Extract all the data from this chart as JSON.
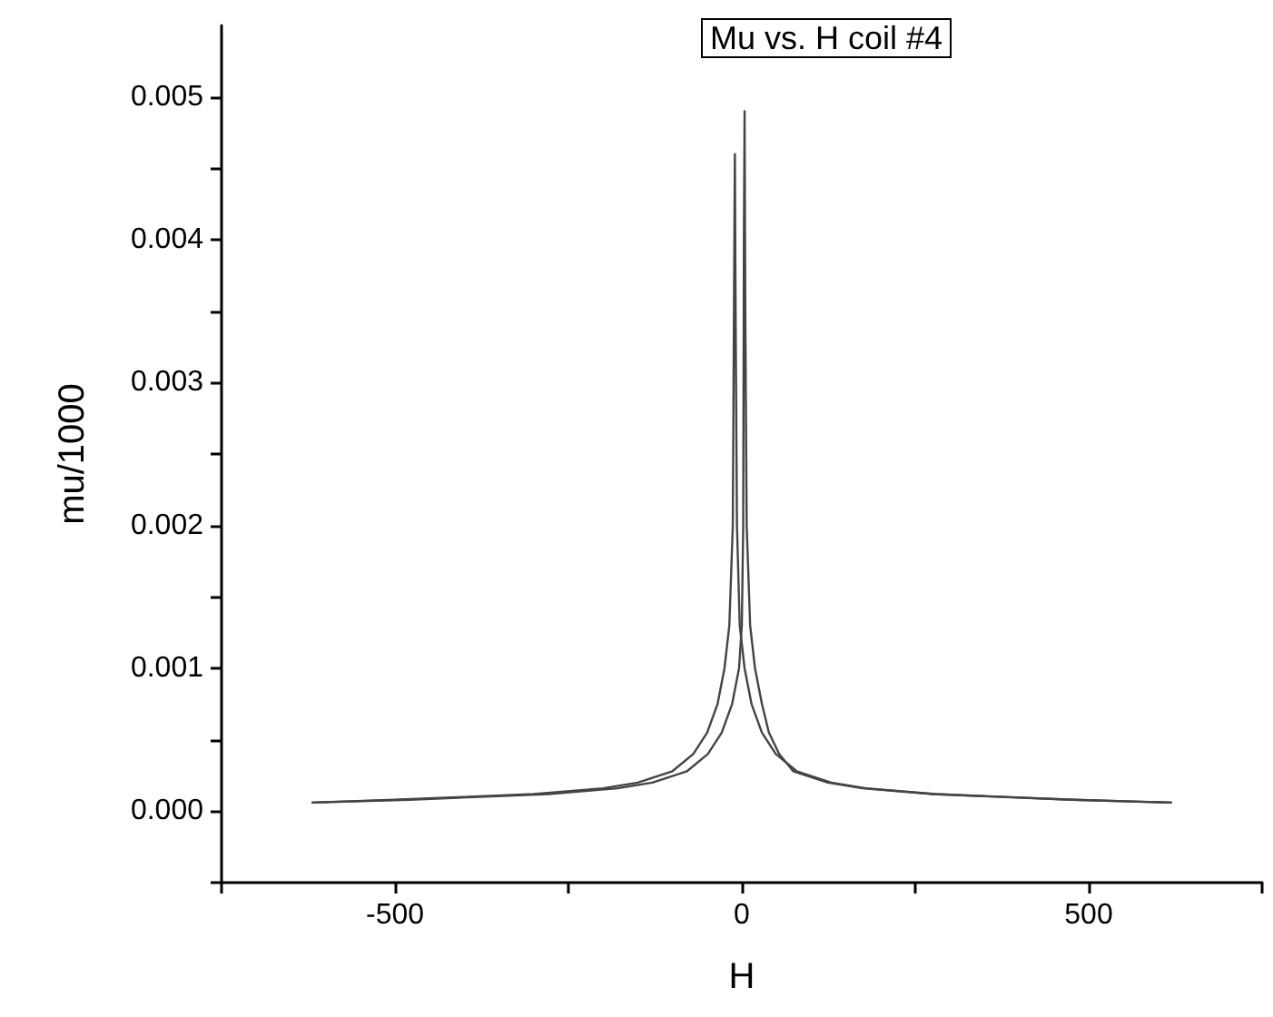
{
  "chart_data": {
    "type": "line",
    "title": "Mu vs. H coil #4",
    "xlabel": "H",
    "ylabel": "mu/1000",
    "xlim": [
      -750,
      750
    ],
    "xticks": [
      {
        "value": -750,
        "label": null
      },
      -500,
      {
        "value": -250,
        "label": null
      },
      0,
      {
        "value": 250,
        "label": null
      },
      500,
      {
        "value": 750,
        "label": null
      }
    ],
    "ylim": [
      -0.0005,
      0.0055
    ],
    "yticks": [
      {
        "value": -0.0005,
        "label": null
      },
      "0.000",
      {
        "value": 0.0005,
        "label": null
      },
      0.001,
      {
        "value": 0.0015,
        "label": null
      },
      0.002,
      {
        "value": 0.0025,
        "label": null
      },
      0.003,
      {
        "value": 0.0035,
        "label": null
      },
      0.004,
      {
        "value": 0.0045,
        "label": null
      },
      0.005
    ],
    "grid": false,
    "marker": "none",
    "line_style": "solid",
    "series": [
      {
        "color": "#444444",
        "x": [
          -620,
          -500,
          -400,
          -300,
          -200,
          -150,
          -100,
          -70,
          -50,
          -35,
          -25,
          -18,
          -13,
          -11,
          -10,
          -9,
          -7,
          -3,
          4,
          14,
          29,
          49,
          79,
          129,
          179,
          279,
          379,
          479,
          620
        ],
        "values": [
          6e-05,
          8e-05,
          0.0001,
          0.00012,
          0.00016,
          0.0002,
          0.00028,
          0.0004,
          0.00055,
          0.00075,
          0.001,
          0.0013,
          0.002,
          0.0038,
          0.0046,
          0.0035,
          0.002,
          0.0013,
          0.001,
          0.00075,
          0.00055,
          0.0004,
          0.00028,
          0.0002,
          0.00016,
          0.00012,
          0.0001,
          8e-05,
          6e-05
        ]
      },
      {
        "color": "#444444",
        "x": [
          -620,
          -479,
          -379,
          -279,
          -179,
          -129,
          -79,
          -49,
          -29,
          -14,
          -4,
          0,
          2,
          3,
          4,
          5,
          7,
          12,
          19,
          29,
          39,
          54,
          74,
          124,
          174,
          274,
          374,
          474,
          620
        ],
        "values": [
          6e-05,
          8e-05,
          0.0001,
          0.00012,
          0.00016,
          0.0002,
          0.00028,
          0.0004,
          0.00055,
          0.00075,
          0.001,
          0.0013,
          0.002,
          0.004,
          0.0049,
          0.0035,
          0.002,
          0.0013,
          0.001,
          0.00075,
          0.00055,
          0.0004,
          0.00028,
          0.0002,
          0.00016,
          0.00012,
          0.0001,
          8e-05,
          6e-05
        ]
      }
    ]
  }
}
